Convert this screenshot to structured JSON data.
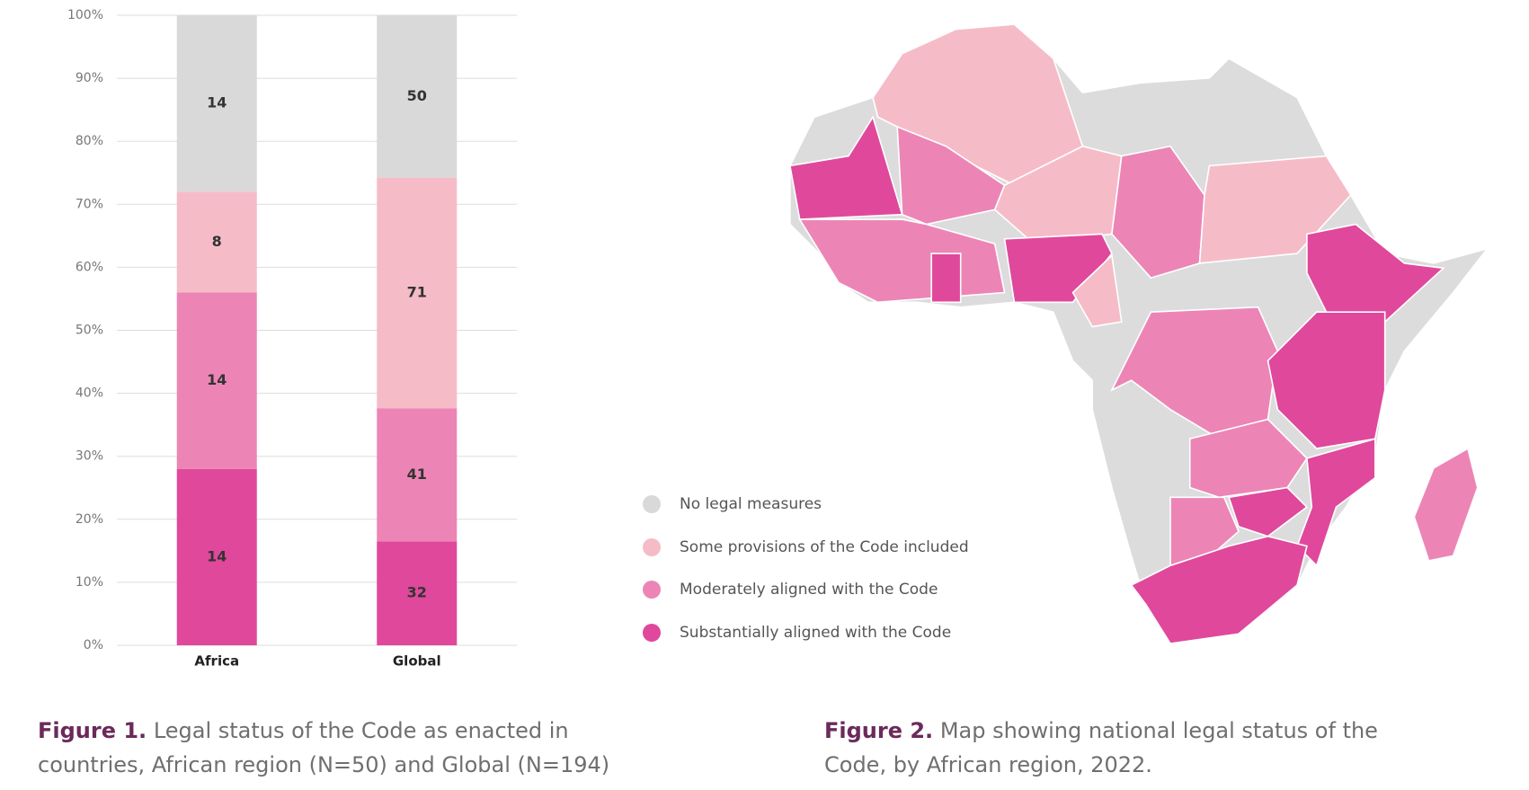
{
  "chart_data": {
    "type": "bar",
    "stacking": "percent",
    "categories": [
      "Africa",
      "Global"
    ],
    "series": [
      {
        "name": "Substantially aligned with the Code",
        "color": "#e0489c",
        "values": [
          14,
          32
        ]
      },
      {
        "name": "Moderately aligned with the Code",
        "color": "#ec85b5",
        "values": [
          14,
          41
        ]
      },
      {
        "name": "Some provisions of the Code included",
        "color": "#f5bcc8",
        "values": [
          8,
          71
        ]
      },
      {
        "name": "No legal measures",
        "color": "#d9d9d9",
        "values": [
          14,
          50
        ]
      }
    ],
    "ylim": [
      0,
      100
    ],
    "yticks": [
      {
        "value": 0,
        "label": "0%"
      },
      {
        "value": 10,
        "label": "10%"
      },
      {
        "value": 20,
        "label": "20%"
      },
      {
        "value": 30,
        "label": "30%"
      },
      {
        "value": 40,
        "label": "40%"
      },
      {
        "value": 50,
        "label": "50%"
      },
      {
        "value": 60,
        "label": "60%"
      },
      {
        "value": 70,
        "label": "70%"
      },
      {
        "value": 80,
        "label": "80%"
      },
      {
        "value": 90,
        "label": "90%"
      },
      {
        "value": 100,
        "label": "100%"
      }
    ],
    "grid": true
  },
  "captions": [
    {
      "label": "Figure 1.",
      "lines": [
        "Legal status of the Code as enacted in",
        "countries, African region (N=50) and Global (N=194)"
      ]
    },
    {
      "label": "Figure 2.",
      "lines": [
        "Map showing national legal status of the",
        "Code, by African region, 2022."
      ]
    }
  ]
}
